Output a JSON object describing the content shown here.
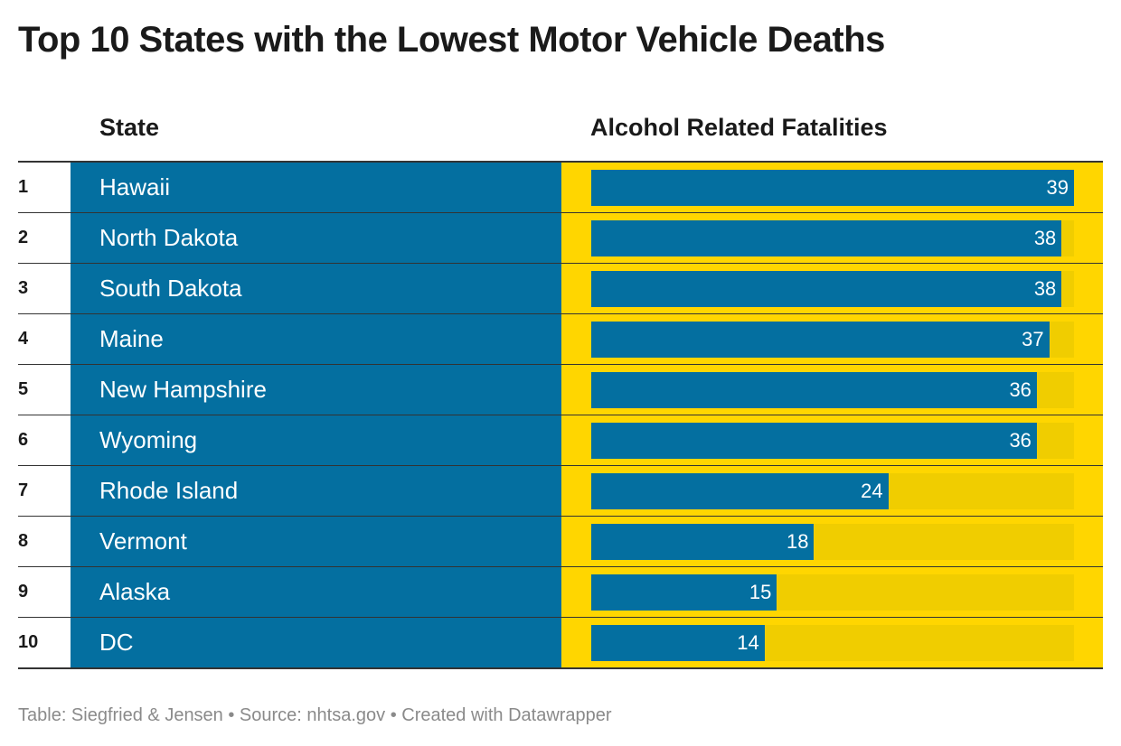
{
  "title": "Top 10 States with the Lowest Motor Vehicle Deaths",
  "columns": {
    "state": "State",
    "value": "Alcohol Related Fatalities"
  },
  "footer": "Table: Siegfried & Jensen • Source: nhtsa.gov • Created with Datawrapper",
  "colors": {
    "state_cell": "#046fa0",
    "bar": "#046fa0",
    "value_cell": "#ffd600",
    "bar_track": "#f0cd00"
  },
  "chart_data": {
    "type": "table",
    "title": "Top 10 States with the Lowest Motor Vehicle Deaths",
    "column_headers": [
      "State",
      "Alcohol Related Fatalities"
    ],
    "max_value": 39,
    "rows": [
      {
        "rank": "1",
        "state": "Hawaii",
        "value": 39
      },
      {
        "rank": "2",
        "state": "North Dakota",
        "value": 38
      },
      {
        "rank": "3",
        "state": "South Dakota",
        "value": 38
      },
      {
        "rank": "4",
        "state": "Maine",
        "value": 37
      },
      {
        "rank": "5",
        "state": "New Hampshire",
        "value": 36
      },
      {
        "rank": "6",
        "state": "Wyoming",
        "value": 36
      },
      {
        "rank": "7",
        "state": "Rhode Island",
        "value": 24
      },
      {
        "rank": "8",
        "state": "Vermont",
        "value": 18
      },
      {
        "rank": "9",
        "state": "Alaska",
        "value": 15
      },
      {
        "rank": "10",
        "state": "DC",
        "value": 14
      }
    ]
  }
}
